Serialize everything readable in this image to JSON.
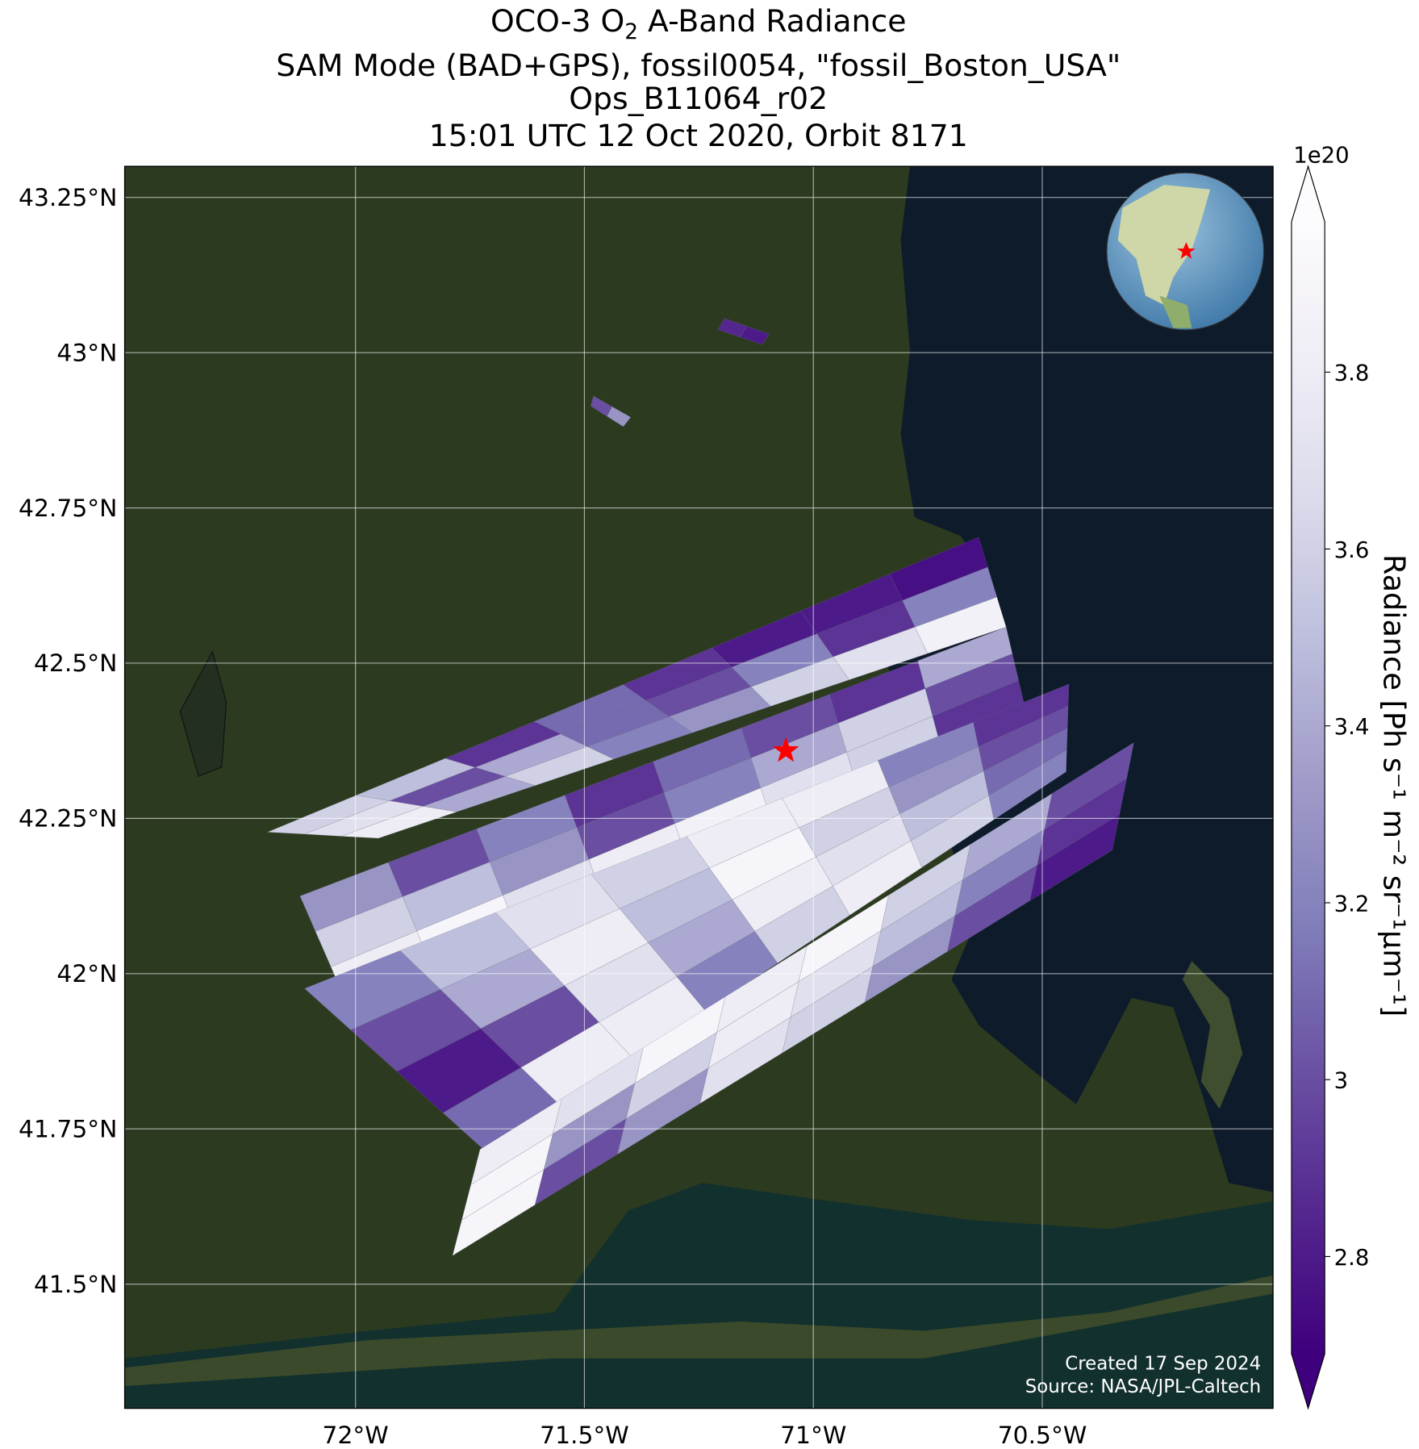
{
  "chart_data": {
    "type": "swath_map",
    "title": {
      "pre": "OCO-3 O",
      "sub": "2",
      "post": " A-Band Radiance"
    },
    "subtitle_lines": [
      "SAM Mode (BAD+GPS), fossil0054, \"fossil_Boston_USA\"",
      "Ops_B11064_r02",
      "15:01 UTC 12 Oct 2020, Orbit 8171"
    ],
    "xlim": [
      -72.504,
      -69.996
    ],
    "ylim": [
      41.3,
      43.3
    ],
    "xticks": [
      {
        "value": -72,
        "label": "72°W"
      },
      {
        "value": -71.5,
        "label": "71.5°W"
      },
      {
        "value": -71,
        "label": "71°W"
      },
      {
        "value": -70.5,
        "label": "70.5°W"
      }
    ],
    "yticks": [
      {
        "value": 41.5,
        "label": "41.5°N"
      },
      {
        "value": 41.75,
        "label": "41.75°N"
      },
      {
        "value": 42,
        "label": "42°N"
      },
      {
        "value": 42.25,
        "label": "42.25°N"
      },
      {
        "value": 42.5,
        "label": "42.5°N"
      },
      {
        "value": 42.75,
        "label": "42.75°N"
      },
      {
        "value": 43,
        "label": "43°N"
      },
      {
        "value": 43.25,
        "label": "43.25°N"
      }
    ],
    "grid": true,
    "colorbar": {
      "label": "Radiance [Ph s⁻¹ m⁻² sr⁻¹μm⁻¹]",
      "offset_label": "1e20",
      "clim": [
        2.69,
        3.97
      ],
      "ticks": [
        2.8,
        3.0,
        3.2,
        3.4,
        3.6,
        3.8
      ],
      "extend": "both",
      "colormap": [
        "#3f007d",
        "#54278f",
        "#6a51a3",
        "#807dba",
        "#9e9ac8",
        "#bcbddc",
        "#dadaeb",
        "#efedf5",
        "#fcfbfd"
      ]
    },
    "target": {
      "lon": -71.06,
      "lat": 42.359,
      "color": "#ff0000"
    },
    "swaths": [
      {
        "corners": [
          [
            -72.192,
            42.228
          ],
          [
            -70.639,
            42.703
          ],
          [
            -70.579,
            42.558
          ],
          [
            -71.95,
            42.218
          ]
        ],
        "values": [
          [
            3.6,
            3.5,
            2.9,
            3.1,
            2.9,
            2.8,
            2.8,
            2.75
          ],
          [
            3.7,
            3.0,
            3.4,
            3.1,
            3.0,
            3.2,
            2.9,
            3.2
          ],
          [
            3.8,
            3.4,
            3.6,
            3.2,
            3.3,
            3.6,
            3.7,
            3.85
          ]
        ]
      },
      {
        "corners": [
          [
            -72.121,
            42.125
          ],
          [
            -70.579,
            42.558
          ],
          [
            -70.538,
            42.429
          ],
          [
            -72.02,
            41.954
          ]
        ],
        "values": [
          [
            3.3,
            3.0,
            3.2,
            2.9,
            3.1,
            3.0,
            2.9,
            3.4
          ],
          [
            3.6,
            3.5,
            3.3,
            3.0,
            3.2,
            3.4,
            3.6,
            3.0
          ],
          [
            3.8,
            3.9,
            3.7,
            3.8,
            3.85,
            3.7,
            3.6,
            2.9
          ]
        ]
      },
      {
        "corners": [
          [
            -72.111,
            41.976
          ],
          [
            -70.442,
            42.466
          ],
          [
            -70.448,
            42.325
          ],
          [
            -71.708,
            41.709
          ]
        ],
        "values": [
          [
            3.2,
            3.5,
            3.7,
            3.6,
            3.8,
            3.8,
            3.2,
            2.9
          ],
          [
            3.0,
            3.4,
            3.8,
            3.5,
            3.9,
            3.6,
            3.3,
            3.0
          ],
          [
            2.8,
            3.0,
            3.7,
            3.4,
            3.8,
            3.7,
            3.5,
            3.1
          ],
          [
            3.1,
            3.8,
            3.8,
            3.2,
            3.6,
            3.8,
            3.6,
            3.2
          ]
        ]
      },
      {
        "corners": [
          [
            -71.728,
            41.717
          ],
          [
            -70.3,
            42.372
          ],
          [
            -70.347,
            42.199
          ],
          [
            -71.788,
            41.546
          ]
        ],
        "values": [
          [
            3.8,
            3.7,
            3.9,
            3.8,
            3.9,
            3.6,
            3.4,
            3.0
          ],
          [
            3.9,
            3.3,
            3.6,
            3.8,
            3.7,
            3.5,
            3.2,
            2.9
          ],
          [
            3.9,
            3.0,
            3.3,
            3.7,
            3.6,
            3.3,
            3.0,
            2.8
          ]
        ]
      },
      {
        "corners": [
          [
            -71.194,
            43.055
          ],
          [
            -71.097,
            43.03
          ],
          [
            -71.111,
            43.013
          ],
          [
            -71.208,
            43.037
          ]
        ],
        "values": [
          [
            2.85,
            2.8
          ]
        ]
      },
      {
        "corners": [
          [
            -71.48,
            42.93
          ],
          [
            -71.399,
            42.896
          ],
          [
            -71.415,
            42.881
          ],
          [
            -71.486,
            42.914
          ]
        ],
        "values": [
          [
            3.0,
            3.3
          ]
        ]
      }
    ],
    "credits": [
      "Created 17 Sep 2024",
      "Source: NASA/JPL-Caltech"
    ]
  }
}
